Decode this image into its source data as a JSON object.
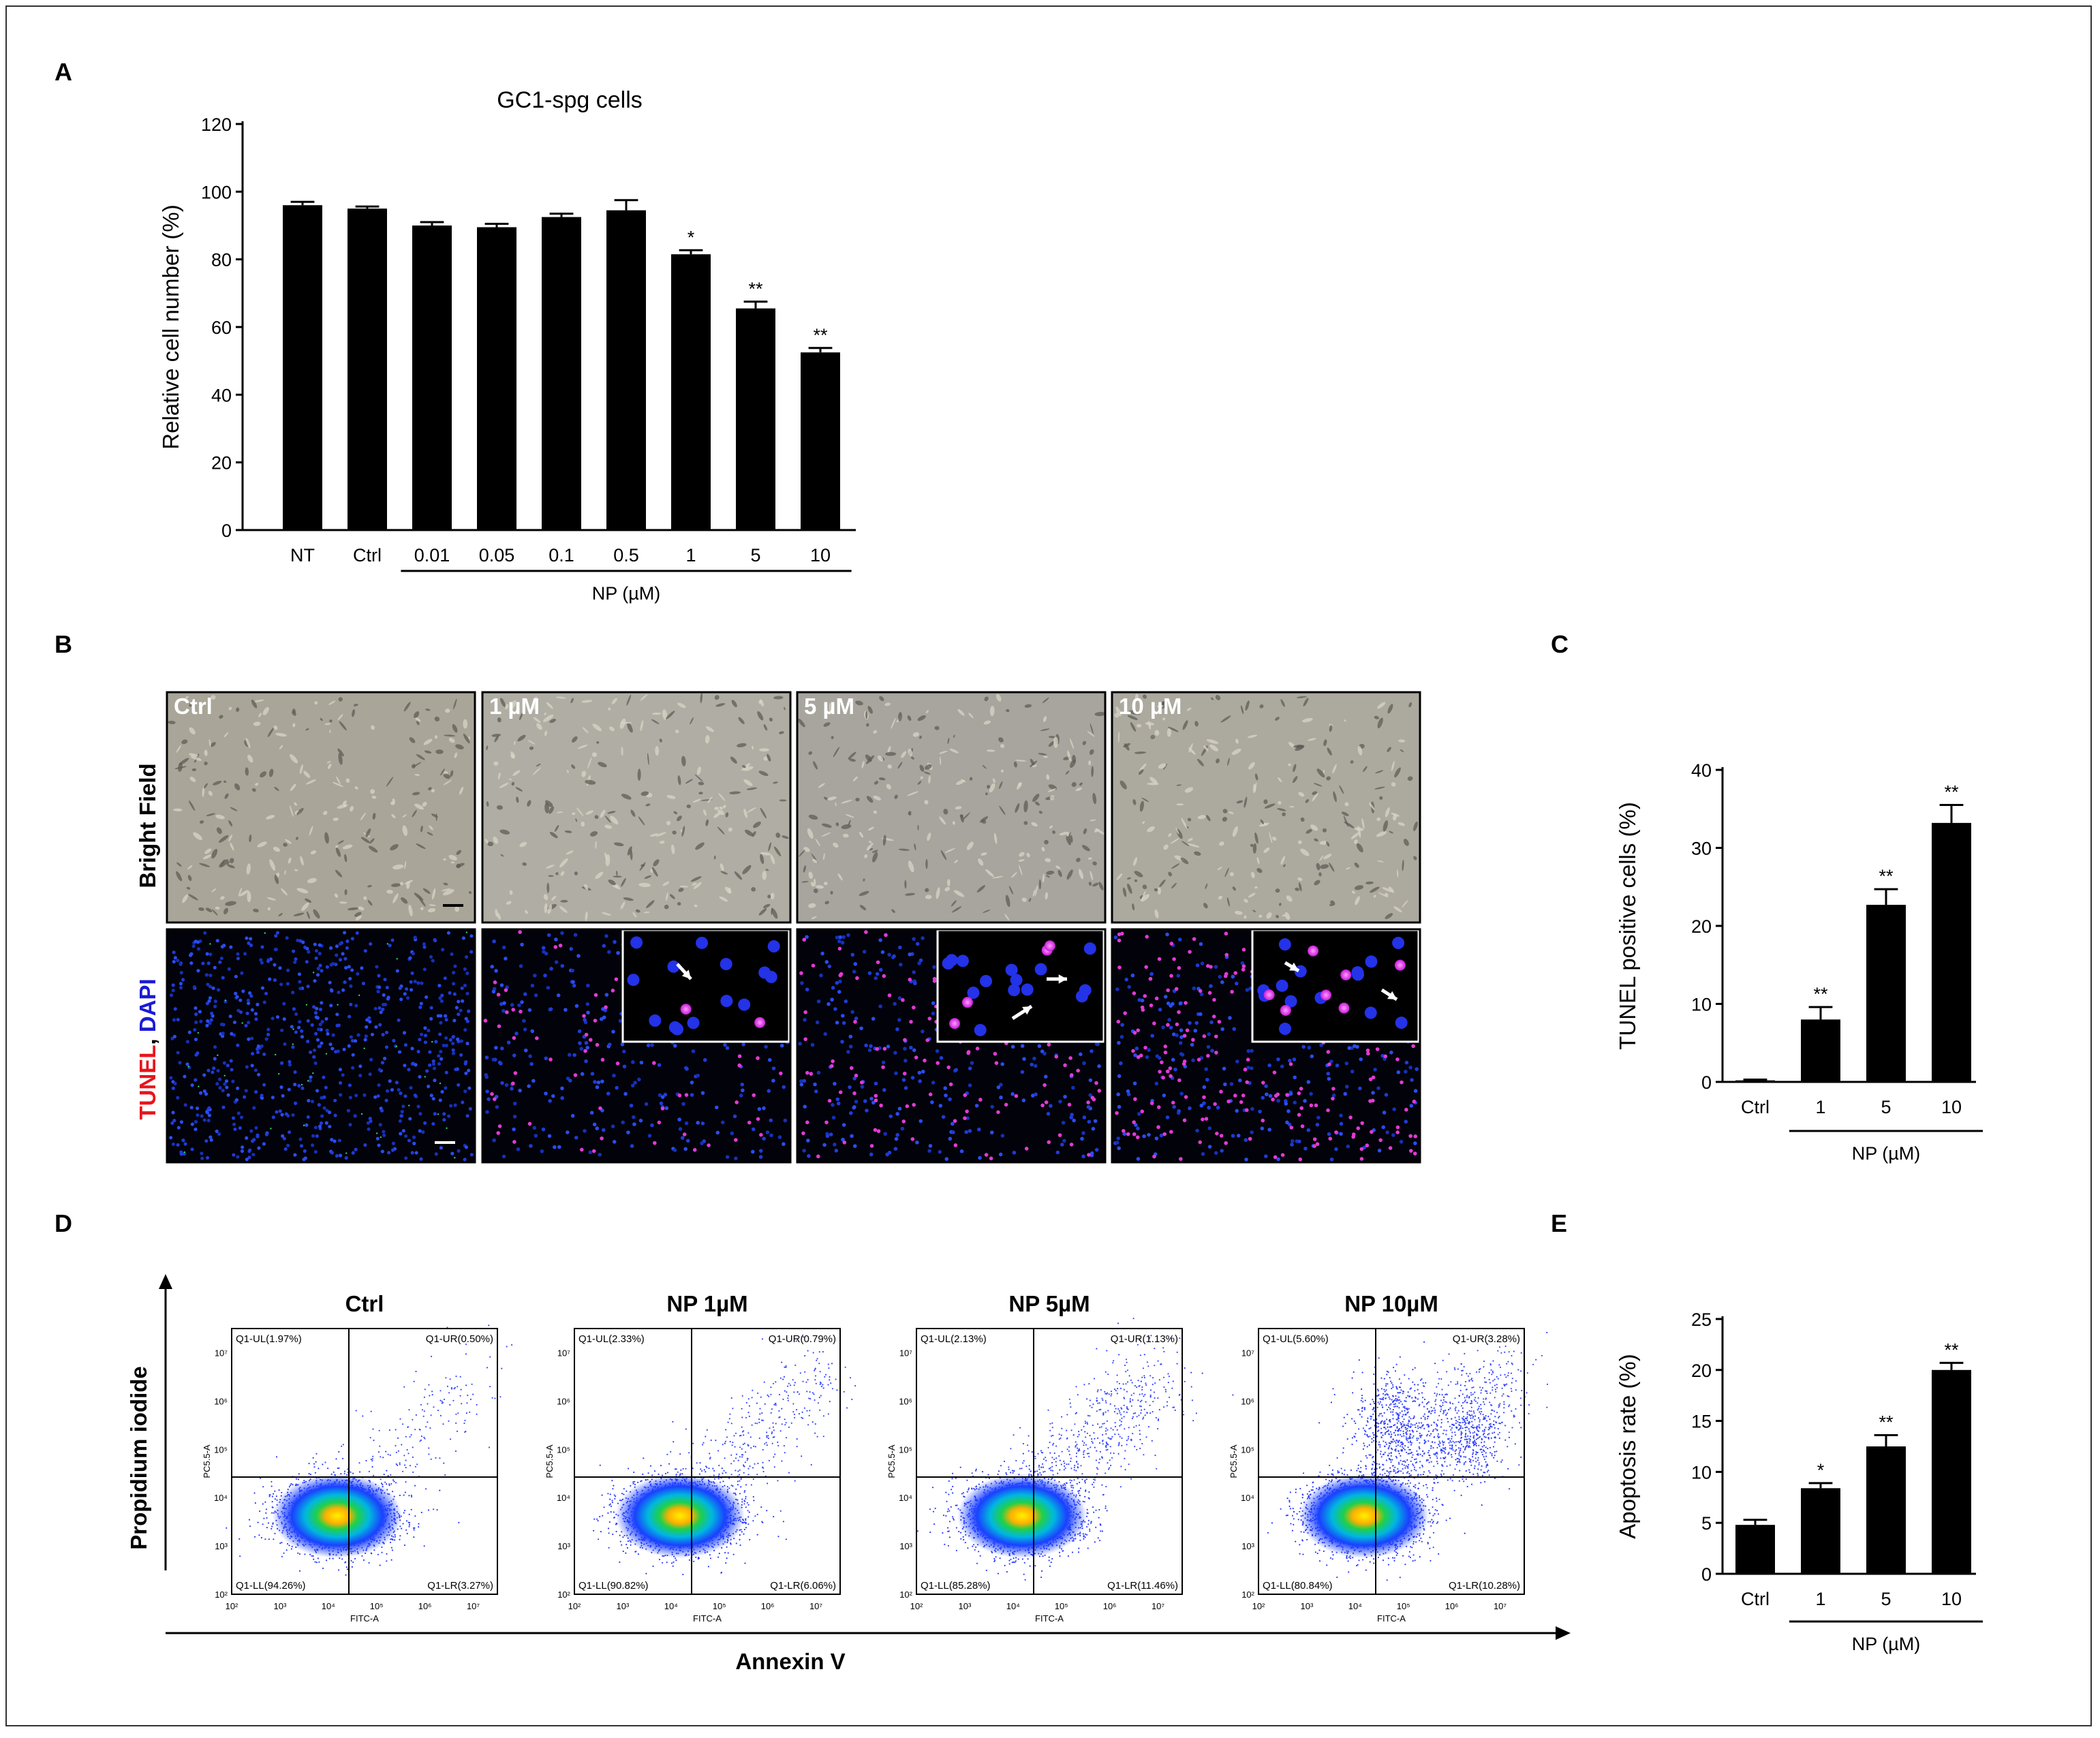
{
  "panels": {
    "A": "A",
    "B": "B",
    "C": "C",
    "D": "D",
    "E": "E"
  },
  "chart_data": [
    {
      "id": "A",
      "type": "bar",
      "title": "GC1-spg cells",
      "categories": [
        "NT",
        "Ctrl",
        "0.01",
        "0.05",
        "0.1",
        "0.5",
        "1",
        "5",
        "10"
      ],
      "values": [
        96,
        95,
        90,
        89.5,
        92.5,
        94.5,
        81.5,
        65.5,
        52.5
      ],
      "errors": [
        1,
        0.6,
        1,
        1,
        1,
        3,
        1.2,
        2,
        1.3
      ],
      "sig": [
        "",
        "",
        "",
        "",
        "",
        "",
        "*",
        "**",
        "**"
      ],
      "ylabel": "Relative cell number (%)",
      "xgroup_label": "NP (µM)",
      "ylim": [
        0,
        120
      ],
      "yticks": [
        0,
        20,
        40,
        60,
        80,
        100,
        120
      ]
    },
    {
      "id": "C",
      "type": "bar",
      "categories": [
        "Ctrl",
        "1",
        "5",
        "10"
      ],
      "values": [
        0.2,
        8,
        22.7,
        33.2
      ],
      "errors": [
        0.1,
        1.6,
        2,
        2.3
      ],
      "sig": [
        "",
        "**",
        "**",
        "**"
      ],
      "ylabel": "TUNEL positive cells (%)",
      "xgroup_label": "NP (µM)",
      "ylim": [
        0,
        40
      ],
      "yticks": [
        0,
        10,
        20,
        30,
        40
      ]
    },
    {
      "id": "E",
      "type": "bar",
      "categories": [
        "Ctrl",
        "1",
        "5",
        "10"
      ],
      "values": [
        4.8,
        8.4,
        12.5,
        20
      ],
      "errors": [
        0.5,
        0.5,
        1.1,
        0.7
      ],
      "sig": [
        "",
        "*",
        "**",
        "**"
      ],
      "ylabel": "Apoptosis rate (%)",
      "xgroup_label": "NP (µM)",
      "ylim": [
        0,
        25
      ],
      "yticks": [
        0,
        5,
        10,
        15,
        20,
        25
      ]
    }
  ],
  "microscopy": {
    "columns": [
      "Ctrl",
      "1 µM",
      "5 µM",
      "10 µM"
    ],
    "row_bright": "Bright Field",
    "row_tunel_word": "TUNEL",
    "row_tunel_sep": ", ",
    "row_dapi_word": "DAPI",
    "colors": {
      "tunel": "#e8151b",
      "dapi": "#1a1ad6"
    }
  },
  "flow": {
    "y_axis": "Propidium iodide",
    "x_axis": "Annexin V",
    "channel_y": "PC5.5-A",
    "channel_x": "FITC-A",
    "tick_labels": [
      "10²",
      "10³",
      "10⁴",
      "10⁵",
      "10⁶",
      "10⁷"
    ],
    "plots": [
      {
        "title": "Ctrl",
        "UL": "Q1-UL(1.97%)",
        "UR": "Q1-UR(0.50%)",
        "LL": "Q1-LL(94.26%)",
        "LR": "Q1-LR(3.27%)"
      },
      {
        "title": "NP 1µM",
        "UL": "Q1-UL(2.33%)",
        "UR": "Q1-UR(0.79%)",
        "LL": "Q1-LL(90.82%)",
        "LR": "Q1-LR(6.06%)"
      },
      {
        "title": "NP 5µM",
        "UL": "Q1-UL(2.13%)",
        "UR": "Q1-UR(1.13%)",
        "LL": "Q1-LL(85.28%)",
        "LR": "Q1-LR(11.46%)"
      },
      {
        "title": "NP 10µM",
        "UL": "Q1-UL(5.60%)",
        "UR": "Q1-UR(3.28%)",
        "LL": "Q1-LL(80.84%)",
        "LR": "Q1-LR(10.28%)"
      }
    ]
  }
}
